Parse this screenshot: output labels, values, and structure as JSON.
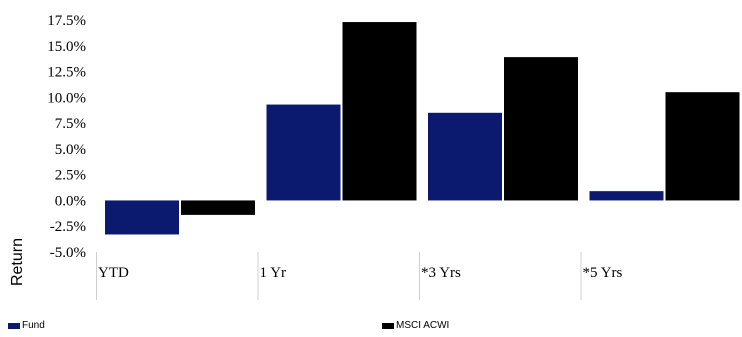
{
  "chart_data": {
    "type": "bar",
    "ylabel": "Return",
    "categories": [
      "YTD",
      "1 Yr",
      "*3 Yrs",
      "*5 Yrs"
    ],
    "y_ticks": [
      "17.5%",
      "15.0%",
      "12.5%",
      "10.0%",
      "7.5%",
      "5.0%",
      "2.5%",
      "0.0%",
      "-2.5%",
      "-5.0%"
    ],
    "ylim": [
      -5.0,
      17.5
    ],
    "series": [
      {
        "name": "Fund",
        "color": "#0b1a6e",
        "values": [
          -3.3,
          9.3,
          8.5,
          0.9
        ]
      },
      {
        "name": "MSCI ACWI",
        "color": "#000000",
        "values": [
          -1.4,
          17.3,
          13.9,
          10.5
        ]
      }
    ],
    "grid": false,
    "legend_position": "bottom"
  }
}
